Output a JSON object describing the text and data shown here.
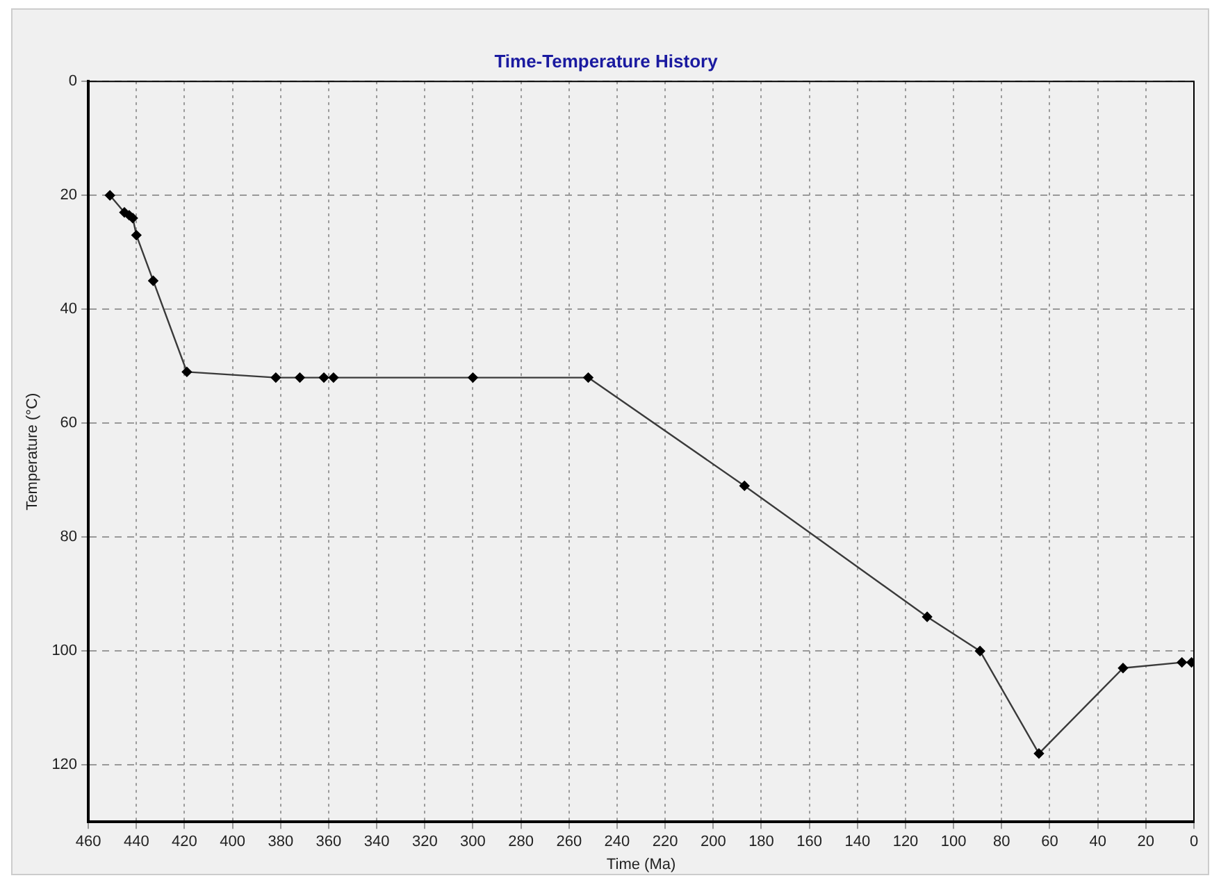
{
  "chart_data": {
    "type": "line",
    "title": "Time-Temperature History",
    "xlabel": "Time (Ma)",
    "ylabel": "Temperature (°C)",
    "x": [
      451,
      445,
      443,
      441.5,
      440,
      433,
      419,
      382,
      372,
      362,
      358,
      300,
      252,
      187,
      111,
      89,
      64.5,
      29.5,
      5,
      1
    ],
    "series": [
      {
        "color": "#3a3a3a",
        "values": [
          20,
          23,
          23.5,
          24,
          27,
          35,
          51,
          52,
          52,
          52,
          52,
          52,
          52,
          71,
          94,
          100,
          118,
          103,
          102,
          102
        ]
      }
    ],
    "xlim": [
      460,
      0
    ],
    "xticks": [
      460,
      440,
      420,
      400,
      380,
      360,
      340,
      320,
      300,
      280,
      260,
      240,
      220,
      200,
      180,
      160,
      140,
      120,
      100,
      80,
      60,
      40,
      20,
      0
    ],
    "ylim": [
      130,
      0
    ],
    "yticks": [
      0,
      20,
      40,
      60,
      80,
      100,
      120
    ],
    "grid": true,
    "marker": "diamond",
    "line_style": "solid",
    "legend": false
  }
}
